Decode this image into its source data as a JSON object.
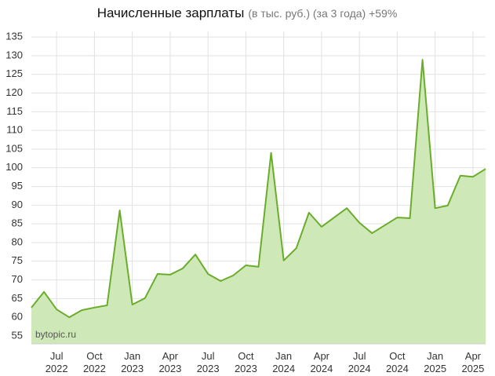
{
  "chart_data": {
    "type": "area",
    "title": "Начисленные зарплаты",
    "subtitle": "(в тыс. руб.) (за 3 года) +59%",
    "annotation": "bytopic.ru",
    "categories": [
      null,
      null,
      "Jul 2022",
      null,
      null,
      "Oct 2022",
      null,
      null,
      "Jan 2023",
      null,
      null,
      "Apr 2023",
      null,
      null,
      "Jul 2023",
      null,
      null,
      "Oct 2023",
      null,
      null,
      "Jan 2024",
      null,
      null,
      "Apr 2024",
      null,
      null,
      "Jul 2024",
      null,
      null,
      "Oct 2024",
      null,
      null,
      "Jan 2025",
      null,
      null,
      "Apr 2025",
      null
    ],
    "values": [
      62.6,
      66.8,
      62.1,
      60.0,
      61.9,
      62.6,
      63.2,
      88.6,
      63.4,
      65.1,
      71.6,
      71.4,
      73.1,
      76.8,
      71.6,
      69.7,
      71.2,
      73.9,
      73.5,
      104.0,
      75.2,
      78.5,
      88.0,
      84.2,
      86.7,
      89.2,
      85.3,
      82.5,
      84.6,
      86.7,
      86.5,
      128.9,
      89.2,
      89.9,
      97.9,
      97.6,
      99.7
    ],
    "color": "#6aad2b",
    "fill": "#cfe8b8",
    "ylim": [
      52.9,
      136.5
    ],
    "yticks": [
      55,
      60,
      65,
      70,
      75,
      80,
      85,
      90,
      95,
      100,
      105,
      110,
      115,
      120,
      125,
      130,
      135
    ],
    "grid": true
  }
}
